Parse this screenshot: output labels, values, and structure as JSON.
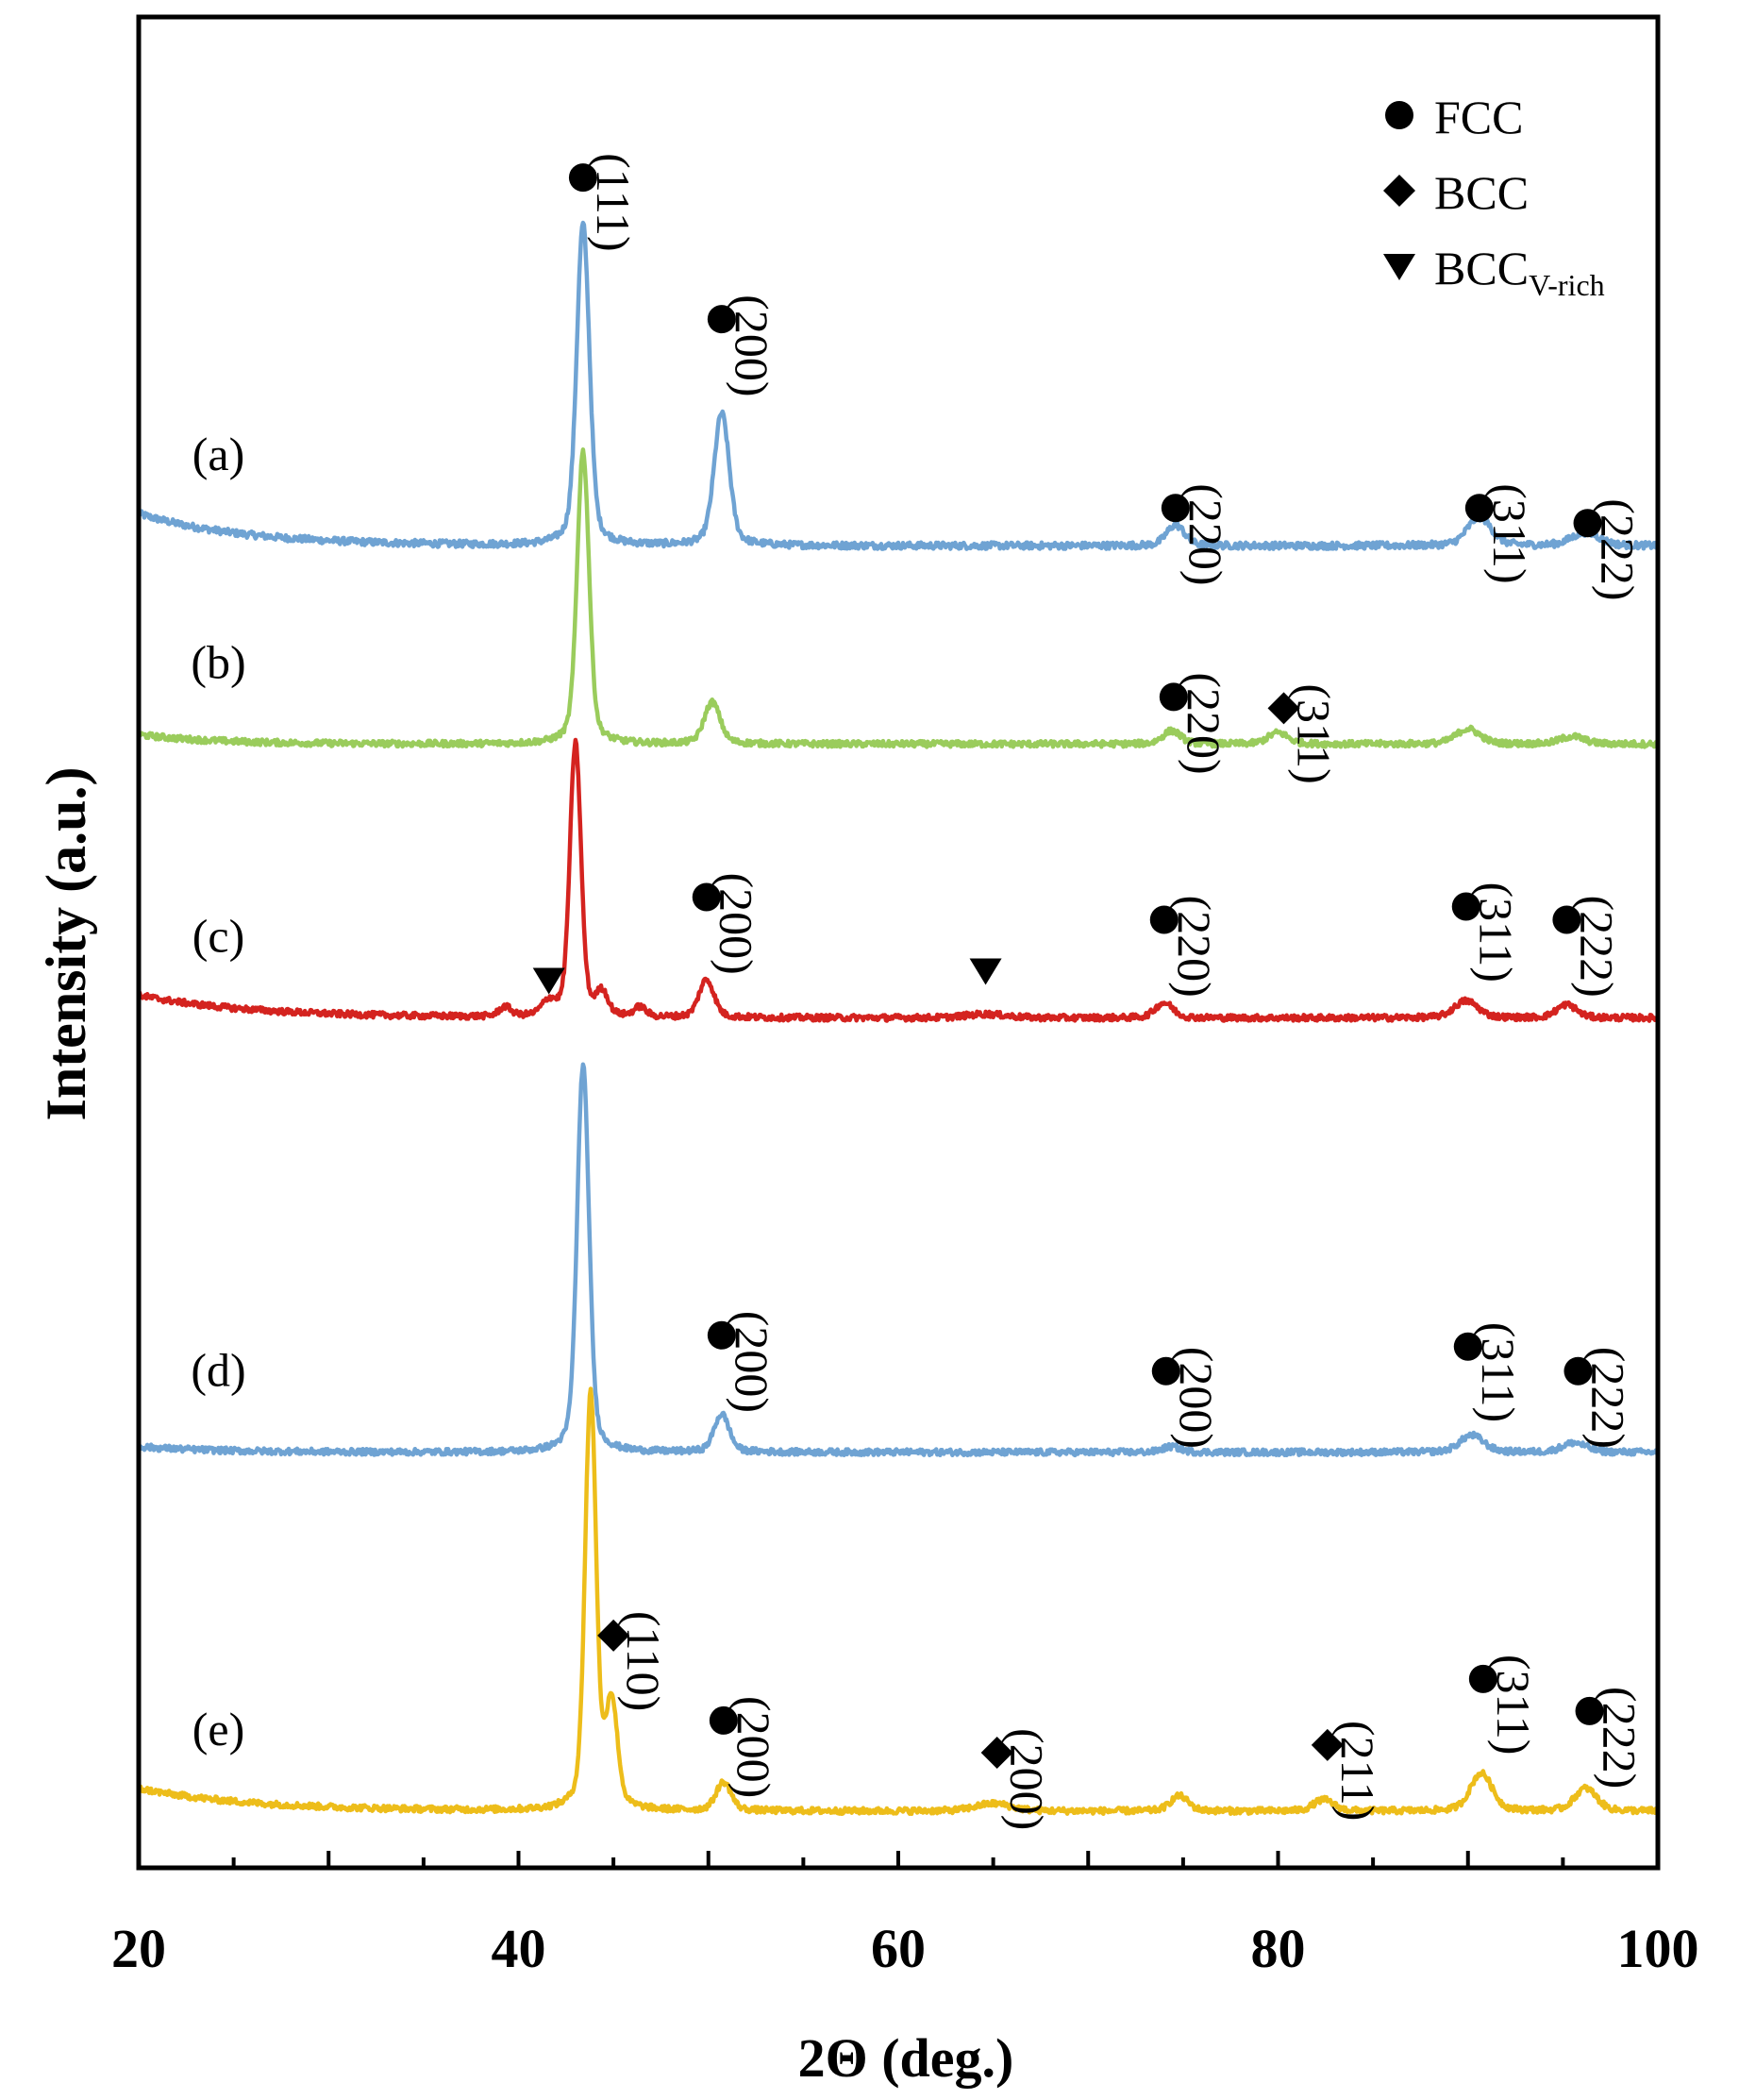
{
  "chart_data": {
    "type": "line",
    "title": "",
    "xlabel": "2Θ (deg.)",
    "ylabel": "Intensity (a.u.)",
    "xlim": [
      20,
      100
    ],
    "ylim": [
      0,
      9.8
    ],
    "grid": false,
    "y_ticks_visible": false,
    "x_ticks": [
      20,
      40,
      60,
      80,
      100
    ],
    "x_tick_labels": [
      "20",
      "40",
      "60",
      "80",
      "100"
    ],
    "legend": {
      "placement": "top-right",
      "entries": [
        {
          "marker": "circle",
          "label": "FCC",
          "sub": ""
        },
        {
          "marker": "diamond",
          "label": "BCC",
          "sub": ""
        },
        {
          "marker": "triangle-down",
          "label": "BCC",
          "sub": "V-rich"
        }
      ]
    },
    "series": [
      {
        "name": "(a)",
        "color": "#6fa3d3",
        "width": 4.5,
        "baseline": 7.0,
        "start_raise": 0.17,
        "decay": 5.5,
        "noise": 0.018,
        "label_x": 24.2,
        "label_y": 7.4,
        "peaks": [
          {
            "x": 43.4,
            "h": 1.7,
            "w": 0.32
          },
          {
            "x": 50.7,
            "h": 0.7,
            "w": 0.38
          },
          {
            "x": 74.6,
            "h": 0.11,
            "w": 0.45
          },
          {
            "x": 90.6,
            "h": 0.15,
            "w": 0.6
          },
          {
            "x": 96.2,
            "h": 0.07,
            "w": 0.7
          }
        ],
        "annotations": [
          {
            "x": 43.4,
            "y": 8.95,
            "marker": "circle",
            "label": "(111)"
          },
          {
            "x": 50.7,
            "y": 8.2,
            "marker": "circle",
            "label": "(200)"
          },
          {
            "x": 74.6,
            "y": 7.2,
            "marker": "circle",
            "label": "(220)"
          },
          {
            "x": 90.6,
            "y": 7.2,
            "marker": "circle",
            "label": "(311)"
          },
          {
            "x": 96.3,
            "y": 7.12,
            "marker": "circle",
            "label": "(222)"
          }
        ]
      },
      {
        "name": "(b)",
        "color": "#9acc5c",
        "width": 4.5,
        "baseline": 5.95,
        "start_raise": 0.05,
        "decay": 4.0,
        "noise": 0.016,
        "label_x": 24.2,
        "label_y": 6.3,
        "peaks": [
          {
            "x": 43.4,
            "h": 1.55,
            "w": 0.3
          },
          {
            "x": 50.2,
            "h": 0.22,
            "w": 0.4
          },
          {
            "x": 74.4,
            "h": 0.07,
            "w": 0.45
          },
          {
            "x": 80.0,
            "h": 0.06,
            "w": 0.5
          },
          {
            "x": 90.0,
            "h": 0.08,
            "w": 0.6
          },
          {
            "x": 95.5,
            "h": 0.04,
            "w": 0.6
          }
        ],
        "annotations": [
          {
            "x": 74.5,
            "y": 6.2,
            "marker": "circle",
            "label": "(220)"
          },
          {
            "x": 80.3,
            "y": 6.14,
            "marker": "diamond",
            "label": "(311)"
          }
        ]
      },
      {
        "name": "(c)",
        "color": "#d4231f",
        "width": 4.5,
        "baseline": 4.5,
        "start_raise": 0.12,
        "decay": 6.0,
        "noise": 0.016,
        "label_x": 24.2,
        "label_y": 4.85,
        "peaks": [
          {
            "x": 43.0,
            "h": 1.45,
            "w": 0.28
          },
          {
            "x": 39.3,
            "h": 0.05,
            "w": 0.3
          },
          {
            "x": 41.6,
            "h": 0.07,
            "w": 0.35
          },
          {
            "x": 44.4,
            "h": 0.12,
            "w": 0.3
          },
          {
            "x": 46.4,
            "h": 0.05,
            "w": 0.3
          },
          {
            "x": 49.9,
            "h": 0.2,
            "w": 0.38
          },
          {
            "x": 64.6,
            "h": 0.02,
            "w": 1.0
          },
          {
            "x": 74.0,
            "h": 0.08,
            "w": 0.45
          },
          {
            "x": 89.9,
            "h": 0.09,
            "w": 0.6
          },
          {
            "x": 95.2,
            "h": 0.07,
            "w": 0.5
          }
        ],
        "annotations": [
          {
            "x": 41.6,
            "y": 4.7,
            "marker": "triangle-down",
            "label": ""
          },
          {
            "x": 49.9,
            "y": 5.14,
            "marker": "circle",
            "label": "(200)"
          },
          {
            "x": 64.6,
            "y": 4.75,
            "marker": "triangle-down",
            "label": ""
          },
          {
            "x": 74.0,
            "y": 5.02,
            "marker": "circle",
            "label": "(220)"
          },
          {
            "x": 89.9,
            "y": 5.09,
            "marker": "circle",
            "label": "(311)"
          },
          {
            "x": 95.2,
            "y": 5.02,
            "marker": "circle",
            "label": "(222)"
          }
        ]
      },
      {
        "name": "(d)",
        "color": "#6fa3d3",
        "width": 4.5,
        "baseline": 2.2,
        "start_raise": 0.03,
        "decay": 4.0,
        "noise": 0.016,
        "label_x": 24.2,
        "label_y": 2.55,
        "peaks": [
          {
            "x": 43.4,
            "h": 2.05,
            "w": 0.3
          },
          {
            "x": 50.7,
            "h": 0.2,
            "w": 0.38
          },
          {
            "x": 74.4,
            "h": 0.03,
            "w": 0.45
          },
          {
            "x": 90.2,
            "h": 0.09,
            "w": 0.6
          },
          {
            "x": 95.6,
            "h": 0.05,
            "w": 0.6
          }
        ],
        "annotations": [
          {
            "x": 50.7,
            "y": 2.82,
            "marker": "circle",
            "label": "(200)"
          },
          {
            "x": 74.1,
            "y": 2.63,
            "marker": "circle",
            "label": "(200)"
          },
          {
            "x": 90.0,
            "y": 2.76,
            "marker": "circle",
            "label": "(311)"
          },
          {
            "x": 95.8,
            "y": 2.63,
            "marker": "circle",
            "label": "(222)"
          }
        ]
      },
      {
        "name": "(e)",
        "color": "#edbd1a",
        "width": 4.5,
        "baseline": 0.3,
        "start_raise": 0.12,
        "decay": 6.0,
        "noise": 0.016,
        "label_x": 24.2,
        "label_y": 0.65,
        "peaks": [
          {
            "x": 43.8,
            "h": 2.2,
            "w": 0.28
          },
          {
            "x": 44.9,
            "h": 0.55,
            "w": 0.3
          },
          {
            "x": 50.8,
            "h": 0.15,
            "w": 0.38
          },
          {
            "x": 65.0,
            "h": 0.04,
            "w": 0.9
          },
          {
            "x": 74.8,
            "h": 0.08,
            "w": 0.45
          },
          {
            "x": 82.4,
            "h": 0.06,
            "w": 0.5
          },
          {
            "x": 90.7,
            "h": 0.2,
            "w": 0.55
          },
          {
            "x": 96.2,
            "h": 0.12,
            "w": 0.55
          }
        ],
        "annotations": [
          {
            "x": 45.0,
            "y": 1.23,
            "marker": "diamond",
            "label": "(110)"
          },
          {
            "x": 50.8,
            "y": 0.78,
            "marker": "circle",
            "label": "(200)"
          },
          {
            "x": 65.2,
            "y": 0.61,
            "marker": "diamond",
            "label": "(200)"
          },
          {
            "x": 82.6,
            "y": 0.65,
            "marker": "diamond",
            "label": "(211)"
          },
          {
            "x": 90.8,
            "y": 1.0,
            "marker": "circle",
            "label": "(311)"
          },
          {
            "x": 96.4,
            "y": 0.83,
            "marker": "circle",
            "label": "(222)"
          }
        ]
      }
    ]
  }
}
